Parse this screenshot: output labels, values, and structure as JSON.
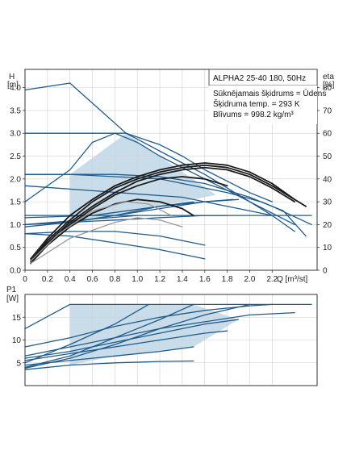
{
  "chart_data": [
    {
      "type": "line",
      "title": "ALPHA2 25-40 180, 50Hz",
      "info_lines": [
        "Sūknējamais šķidrums = Ūdens",
        "Šķidruma temp. = 293 K",
        "Blīvums = 998.2 kg/m³"
      ],
      "ylabel_top": "H",
      "ylabel_unit": "[m]",
      "y2label_top": "eta",
      "y2label_unit": "[%]",
      "xlabel": "Q [m³/st]",
      "xlim": [
        0,
        2.6
      ],
      "ylim": [
        0,
        4.4
      ],
      "y2lim": [
        0,
        88
      ],
      "x_ticks": [
        "0",
        "0.2",
        "0.4",
        "0.6",
        "0.8",
        "1.0",
        "1.2",
        "1.4",
        "1.6",
        "1.8",
        "2.0",
        "2.2"
      ],
      "y_ticks": [
        "0.0",
        "0.5",
        "1.0",
        "1.5",
        "2.0",
        "2.5",
        "3.0",
        "3.5",
        "4.0"
      ],
      "y2_ticks": [
        "0",
        "10",
        "20",
        "30",
        "40",
        "50",
        "60",
        "70",
        "80"
      ],
      "colors": {
        "pump": "#1f5a8a",
        "efficiency": "#1a1a1a",
        "gray": "#999999",
        "fill": "#c9dcea"
      },
      "series": [
        {
          "x": [
            0,
            0.4,
            0.9,
            1.4,
            1.6,
            1.8,
            2.0,
            2.2,
            2.4
          ],
          "values": [
            3.95,
            4.1,
            3.0,
            2.35,
            2.1,
            1.8,
            1.5,
            1.2,
            0.85
          ]
        },
        {
          "x": [
            0,
            0.9,
            1.2,
            1.4,
            1.6,
            1.8,
            2.0,
            2.2
          ],
          "values": [
            3.0,
            3.0,
            2.75,
            2.5,
            2.2,
            1.95,
            1.7,
            1.5
          ]
        },
        {
          "x": [
            0,
            0.4,
            0.8,
            1.2,
            1.5,
            1.8,
            2.1,
            2.3,
            2.5
          ],
          "values": [
            2.1,
            2.1,
            2.05,
            2.0,
            1.85,
            1.7,
            1.5,
            1.3,
            0.75
          ]
        },
        {
          "x": [
            0,
            0.4,
            0.8,
            1.2,
            1.6,
            2.0,
            2.2,
            2.55
          ],
          "values": [
            2.1,
            2.1,
            2.1,
            2.05,
            1.9,
            1.6,
            1.4,
            1.0
          ]
        },
        {
          "x": [
            0,
            1.4,
            1.6,
            1.8,
            2.0,
            2.2
          ],
          "values": [
            1.85,
            1.6,
            1.5,
            1.4,
            1.3,
            1.2
          ]
        },
        {
          "x": [
            0,
            0.6,
            1.0,
            1.4,
            1.8,
            2.2,
            2.55
          ],
          "values": [
            1.2,
            1.2,
            1.2,
            1.2,
            1.2,
            1.2,
            1.2
          ]
        },
        {
          "x": [
            0,
            0.6,
            1.2,
            1.6,
            1.9
          ],
          "values": [
            1.15,
            1.2,
            1.4,
            1.5,
            1.55
          ]
        },
        {
          "x": [
            0,
            0.4,
            0.8,
            1.2,
            1.5
          ],
          "values": [
            1.0,
            1.05,
            1.2,
            1.4,
            1.5
          ]
        },
        {
          "x": [
            0,
            0.4,
            0.8,
            1.2,
            1.6,
            1.85
          ],
          "values": [
            0.95,
            1.05,
            1.2,
            1.35,
            1.5,
            1.55
          ]
        },
        {
          "x": [
            0,
            1.0
          ],
          "values": [
            1.0,
            1.2
          ]
        },
        {
          "x": [
            0,
            0.4,
            0.8,
            1.2,
            1.6,
            1.8
          ],
          "values": [
            1.0,
            1.05,
            1.1,
            1.15,
            1.2,
            1.2
          ]
        },
        {
          "x": [
            0,
            0.4,
            0.6,
            0.8,
            1.0,
            1.2,
            1.6,
            2.0,
            2.4
          ],
          "values": [
            1.5,
            2.2,
            2.8,
            3.0,
            2.8,
            2.5,
            2.0,
            1.5,
            1.0
          ]
        },
        {
          "x": [
            0,
            0.4,
            0.8,
            1.2,
            1.6
          ],
          "values": [
            0.8,
            0.85,
            0.85,
            0.75,
            0.55
          ]
        },
        {
          "x": [
            0,
            0.4,
            0.8,
            1.2,
            1.6
          ],
          "values": [
            0.8,
            0.75,
            0.6,
            0.45,
            0.25
          ]
        },
        {
          "x": [
            0.05,
            0.2,
            0.4,
            0.6,
            0.8,
            1.0,
            1.2,
            1.4,
            1.6,
            1.8,
            2.0,
            2.2,
            2.4
          ],
          "values": [
            0.25,
            0.7,
            1.2,
            1.55,
            1.85,
            2.05,
            2.2,
            2.3,
            2.35,
            2.3,
            2.15,
            1.9,
            1.55
          ]
        },
        {
          "x": [
            0.05,
            0.2,
            0.4,
            0.6,
            0.8,
            1.0,
            1.2,
            1.4,
            1.6,
            1.8,
            2.0,
            2.2,
            2.5
          ],
          "values": [
            0.2,
            0.65,
            1.1,
            1.5,
            1.8,
            2.0,
            2.15,
            2.25,
            2.3,
            2.25,
            2.1,
            1.85,
            1.4
          ]
        },
        {
          "x": [
            0.05,
            0.2,
            0.4,
            0.6,
            0.8,
            1.0,
            1.2,
            1.4,
            1.6,
            1.8,
            2.0,
            2.2,
            2.4
          ],
          "values": [
            0.15,
            0.6,
            1.05,
            1.4,
            1.7,
            1.95,
            2.1,
            2.2,
            2.25,
            2.2,
            2.05,
            1.8,
            1.5
          ]
        },
        {
          "x": [
            0.05,
            0.2,
            0.4,
            0.6,
            0.8,
            1.0,
            1.2,
            1.4,
            1.6,
            1.8
          ],
          "values": [
            0.2,
            0.6,
            1.0,
            1.35,
            1.65,
            1.85,
            2.0,
            2.05,
            2.0,
            1.85
          ]
        },
        {
          "x": [
            0.05,
            0.2,
            0.4,
            0.6,
            0.8,
            1.0,
            1.2,
            1.4,
            1.5
          ],
          "values": [
            0.15,
            0.55,
            0.95,
            1.25,
            1.45,
            1.55,
            1.5,
            1.35,
            1.2
          ]
        },
        {
          "x": [
            0.05,
            0.3,
            0.6,
            0.9,
            1.1,
            1.3
          ],
          "values": [
            0.2,
            0.8,
            1.3,
            1.5,
            1.45,
            1.2
          ]
        },
        {
          "x": [
            0.05,
            0.4,
            0.8,
            1.0,
            1.2,
            1.4
          ],
          "values": [
            0.15,
            0.7,
            1.05,
            1.15,
            1.1,
            0.95
          ]
        }
      ]
    },
    {
      "type": "line",
      "ylabel_top": "P1",
      "ylabel_unit": "[W]",
      "xlim": [
        0,
        2.6
      ],
      "ylim": [
        0,
        20
      ],
      "y_ticks": [
        "5",
        "10",
        "15"
      ],
      "series": [
        {
          "x": [
            0,
            0.4,
            0.9,
            1.4,
            1.8,
            2.2,
            2.55
          ],
          "values": [
            12.5,
            17.8,
            17.8,
            17.8,
            17.8,
            17.8,
            17.8
          ]
        },
        {
          "x": [
            0,
            0.4,
            0.8,
            1.2,
            1.6,
            2.0,
            2.2
          ],
          "values": [
            8.5,
            10.5,
            13.0,
            15.0,
            16.5,
            17.5,
            17.8
          ]
        },
        {
          "x": [
            0,
            0.4,
            0.8,
            1.2,
            1.6,
            2.0,
            2.4
          ],
          "values": [
            6.5,
            8.5,
            10.5,
            12.5,
            14.0,
            15.5,
            16.0
          ]
        },
        {
          "x": [
            0,
            0.4,
            0.8,
            1.2,
            1.6,
            1.9
          ],
          "values": [
            6.0,
            7.5,
            9.5,
            11.5,
            13.5,
            14.5
          ]
        },
        {
          "x": [
            0,
            0.4,
            0.8,
            1.2,
            1.6,
            1.8
          ],
          "values": [
            5.5,
            7.0,
            8.5,
            10.0,
            11.5,
            12.0
          ]
        },
        {
          "x": [
            0,
            0.4,
            0.8,
            1.2,
            1.5
          ],
          "values": [
            4.5,
            5.5,
            6.5,
            7.5,
            8.5
          ]
        },
        {
          "x": [
            0,
            0.4,
            0.8,
            1.2,
            1.5
          ],
          "values": [
            3.5,
            4.5,
            5.0,
            5.3,
            5.4
          ]
        },
        {
          "x": [
            0,
            0.4,
            0.8,
            1.2,
            1.6,
            2.0
          ],
          "values": [
            3.8,
            6.0,
            9.0,
            12.5,
            15.5,
            17.8
          ]
        },
        {
          "x": [
            0,
            0.4,
            0.8,
            1.2,
            1.5
          ],
          "values": [
            4.0,
            6.5,
            10.5,
            14.5,
            17.8
          ]
        },
        {
          "x": [
            0,
            0.4,
            0.8,
            1.1
          ],
          "values": [
            5.0,
            9.0,
            13.5,
            17.8
          ]
        }
      ]
    }
  ]
}
